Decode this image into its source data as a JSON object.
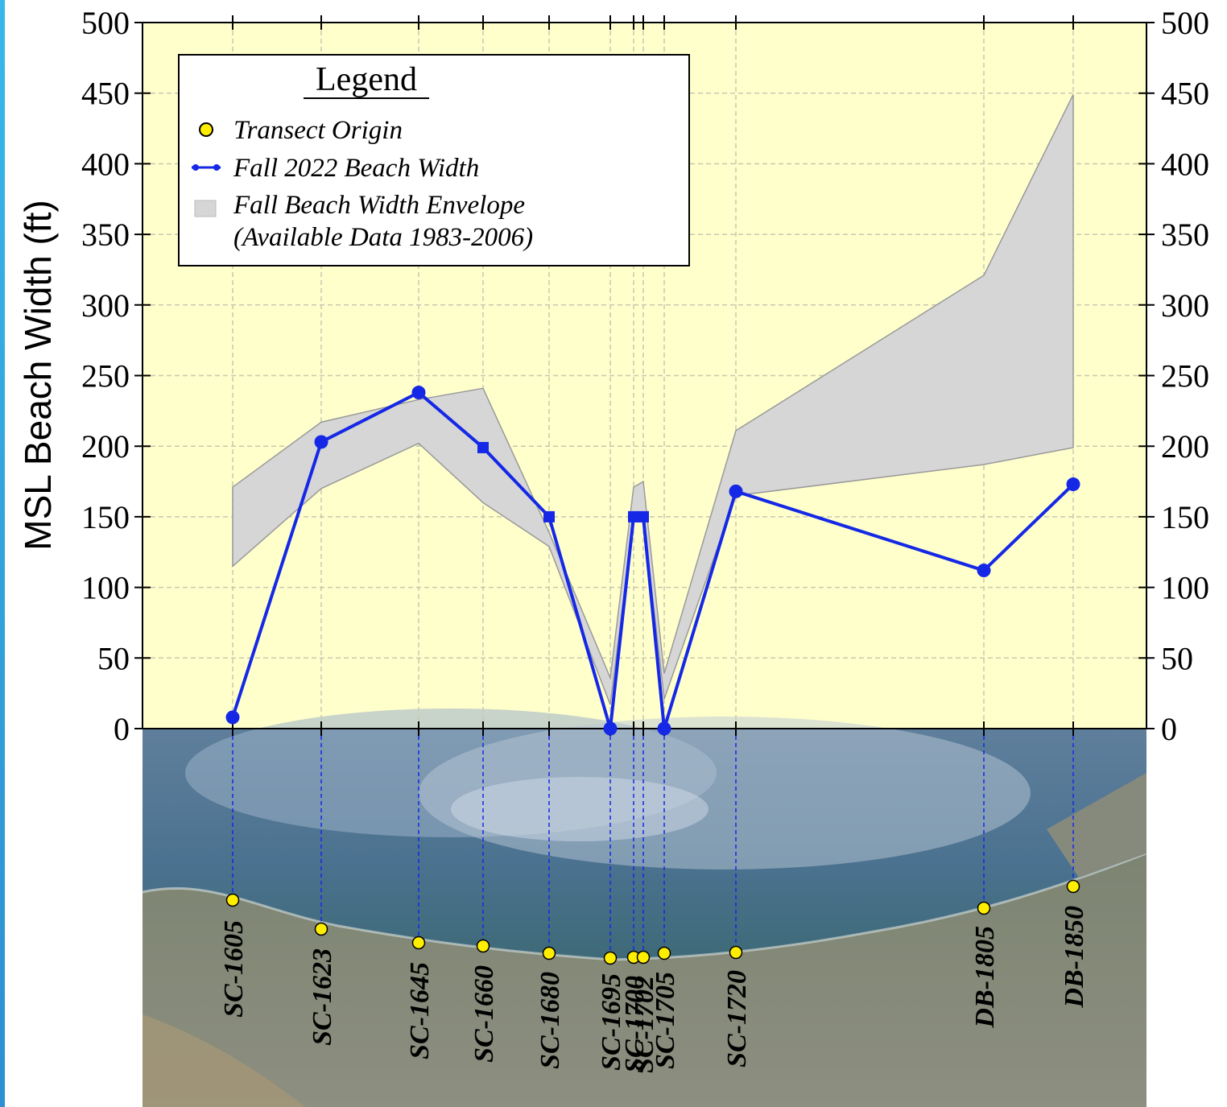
{
  "chart_data": {
    "type": "line",
    "title": "",
    "ylabel": "MSL Beach Width (ft)",
    "ylim": [
      0,
      500
    ],
    "yticks": [
      0,
      50,
      100,
      150,
      200,
      250,
      300,
      350,
      400,
      450,
      500
    ],
    "grid": true,
    "legend_position": "top-left",
    "legend": {
      "title": "Legend",
      "items": [
        "Transect Origin",
        "Fall 2022 Beach Width",
        "Fall Beach Width Envelope",
        "(Available Data 1983-2006)"
      ]
    },
    "categories": [
      "SC-1605",
      "SC-1623",
      "SC-1645",
      "SC-1660",
      "SC-1680",
      "SC-1695",
      "SC-1700",
      "SC-1702",
      "SC-1705",
      "SC-1720",
      "DB-1805",
      "DB-1850"
    ],
    "series": [
      {
        "name": "Fall 2022 Beach Width",
        "color": "#1428e6",
        "values": [
          8,
          203,
          238,
          199,
          150,
          0,
          150,
          150,
          0,
          168,
          112,
          173
        ]
      },
      {
        "name": "Fall Beach Width Envelope",
        "color": "#d6d6d6",
        "upper": [
          171,
          217,
          233,
          241,
          139,
          36,
          171,
          175,
          39,
          211,
          321,
          449
        ],
        "lower": [
          115,
          170,
          202,
          160,
          129,
          17,
          149,
          150,
          21,
          165,
          187,
          199
        ]
      }
    ],
    "colors": {
      "plot_background": "#ffffcc",
      "line": "#1428e6",
      "envelope": "#d6d6d6",
      "transect_origin": "#ffee00",
      "sea": "#2f5d78",
      "land": "#8a8f80"
    }
  }
}
